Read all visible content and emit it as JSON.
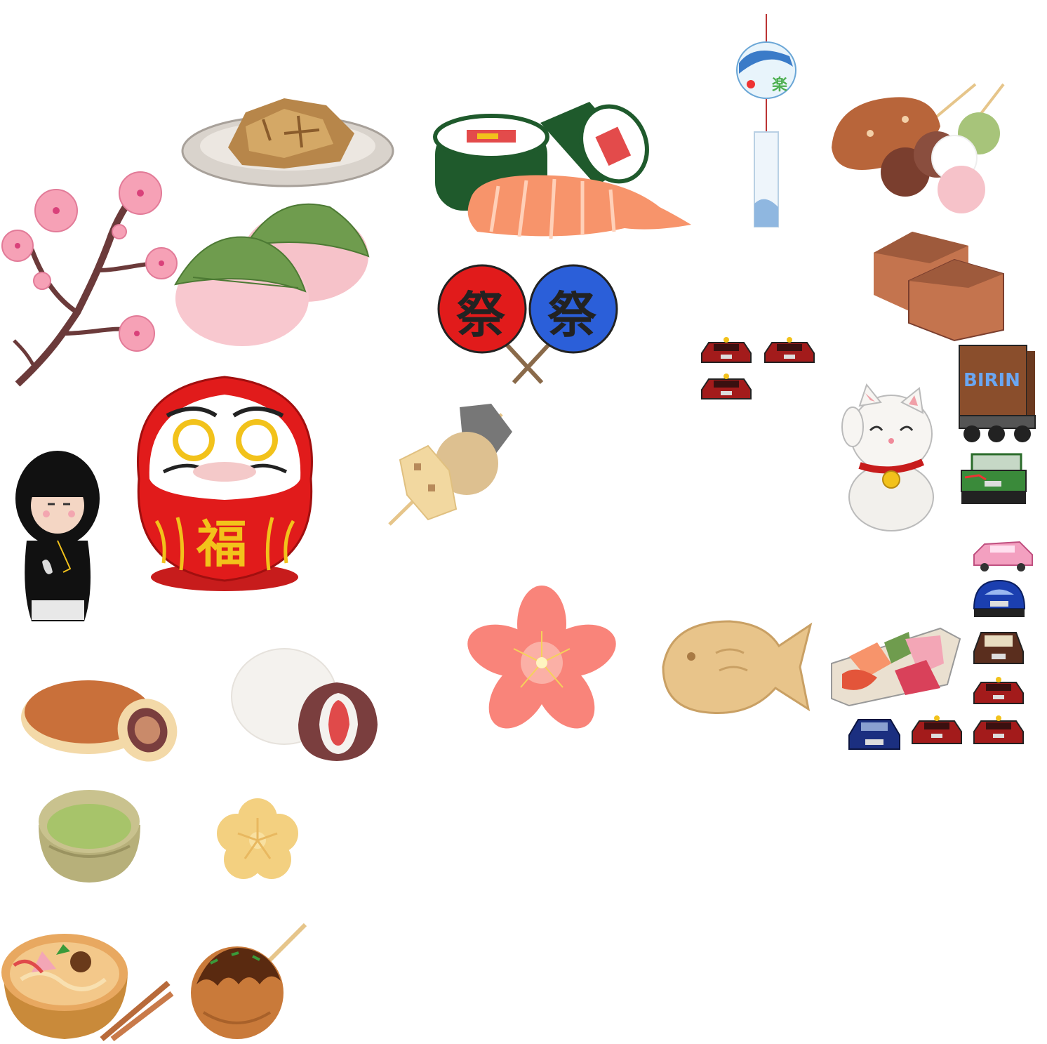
{
  "canvas": {
    "background": "#ffffff"
  },
  "sprites": {
    "daruma_kanji": "福",
    "uchiwa_left_kanji": "祭",
    "uchiwa_right_kanji": "祭",
    "truck_label": "BIRIN"
  },
  "palette": {
    "sakura_pink": "#f6a1b6",
    "daruma_red": "#e11b1b",
    "gold": "#f2c21b",
    "nori_green": "#1f5a2c",
    "salmon": "#f7946b",
    "leaf_green": "#6f9c4e",
    "tan": "#e8c48a",
    "brown": "#8a4e2c",
    "car_red": "#a31b1b",
    "car_blue": "#1b3fb0",
    "matcha": "#a7c46a"
  },
  "icons": [
    "sakura-branch-icon",
    "tofu-plate-icon",
    "sakura-mochi-icon",
    "sushi-roll-icon",
    "wind-chime-icon",
    "dango-icon",
    "yokan-icon",
    "uchiwa-fans-icon",
    "red-car-icon",
    "truck-icon",
    "maneki-neko-icon",
    "green-jeep-icon",
    "daruma-icon",
    "kokeshi-doll-icon",
    "oden-skewer-icon",
    "sakura-flower-icon",
    "taiyaki-icon",
    "sashimi-platter-icon",
    "pink-car-icon",
    "blue-beetle-icon",
    "brown-car-icon",
    "blue-sports-car-icon",
    "dorayaki-icon",
    "daifuku-icon",
    "matcha-bowl-icon",
    "wagashi-icon",
    "ramen-icon",
    "takoyaki-icon"
  ]
}
